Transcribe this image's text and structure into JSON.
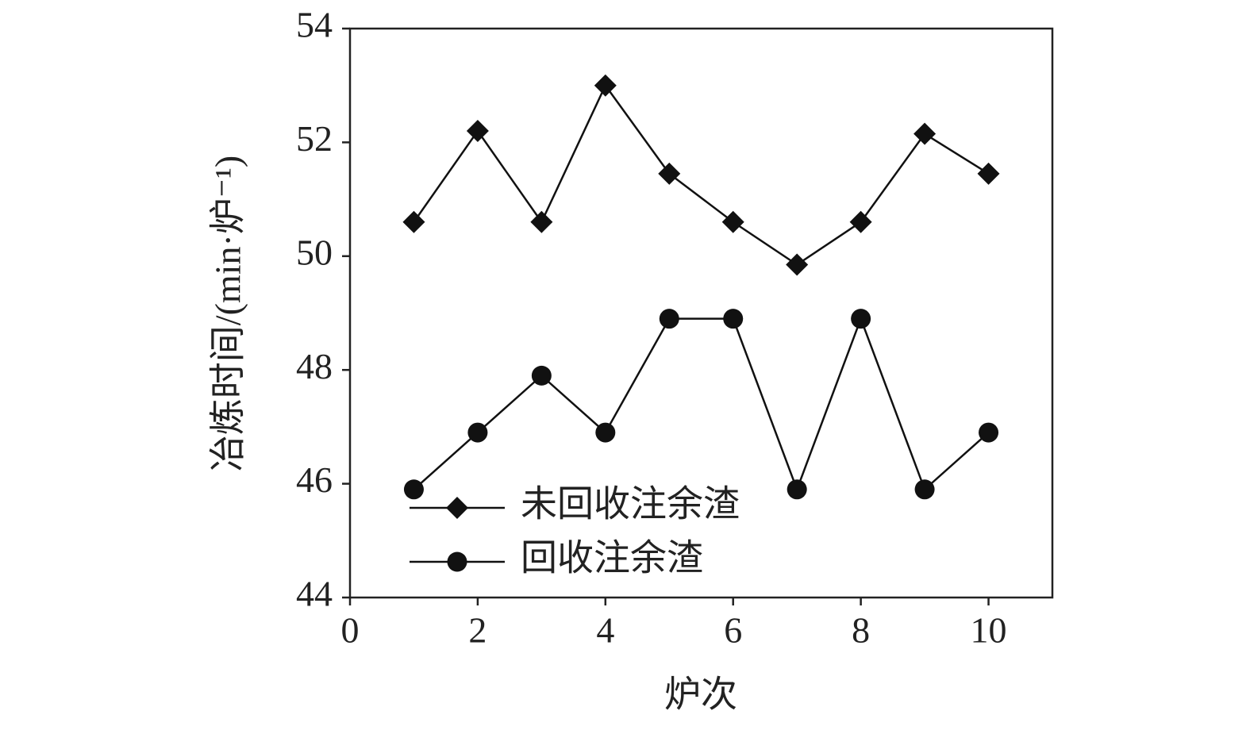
{
  "chart_data": {
    "type": "line",
    "x_label": "炉次",
    "y_label": "冶炼时间/(min·炉⁻¹)",
    "x": [
      1,
      2,
      3,
      4,
      5,
      6,
      7,
      8,
      9,
      10
    ],
    "series": [
      {
        "name": "未回收注余渣",
        "color": "#111111",
        "marker": "diamond",
        "values": [
          50.6,
          52.2,
          50.6,
          53.0,
          51.45,
          50.6,
          49.85,
          50.6,
          52.15,
          51.45
        ]
      },
      {
        "name": "回收注余渣",
        "color": "#111111",
        "marker": "circle",
        "values": [
          45.9,
          46.9,
          47.9,
          46.9,
          48.9,
          48.9,
          45.9,
          48.9,
          45.9,
          46.9
        ]
      }
    ],
    "xlim": [
      0,
      11
    ],
    "xticks": [
      0,
      2,
      4,
      6,
      8,
      10
    ],
    "ylim": [
      44,
      54
    ],
    "yticks": [
      44,
      46,
      48,
      50,
      52,
      54
    ],
    "grid": false,
    "legend": "lower left"
  }
}
